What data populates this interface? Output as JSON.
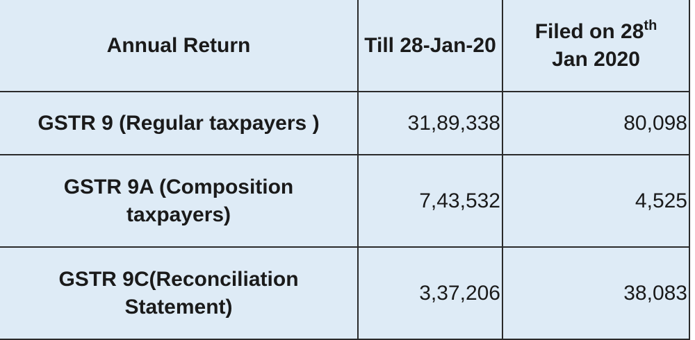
{
  "table": {
    "header": [
      "Annual Return",
      "Till 28-Jan-20",
      [
        "Filed on 28",
        "th",
        "Jan 2020"
      ]
    ],
    "rows": [
      [
        "GSTR 9 (Regular taxpayers )",
        "31,89,338",
        "80,098"
      ],
      [
        "GSTR 9A (Composition taxpayers)",
        "7,43,532",
        "4,525"
      ],
      [
        "GSTR 9C(Reconciliation Statement)",
        "3,37,206",
        "38,083"
      ]
    ]
  }
}
